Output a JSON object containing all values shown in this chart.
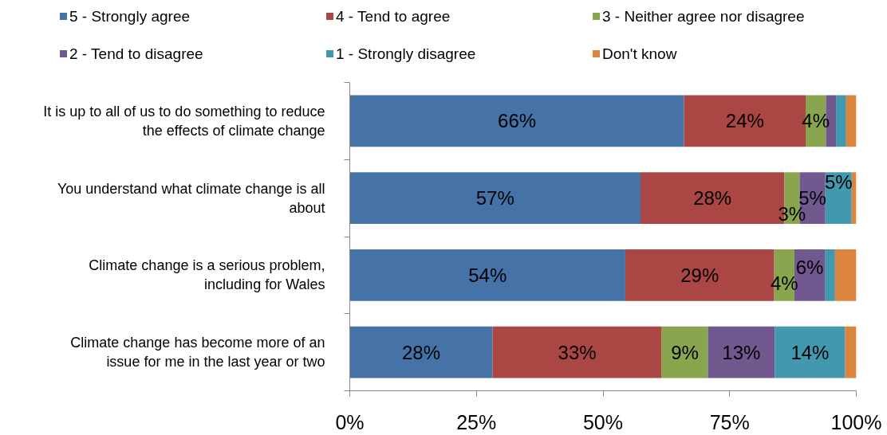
{
  "chart_data": {
    "type": "bar",
    "orientation": "horizontal",
    "stacked": true,
    "categories": [
      "It is up to all of us to do something to reduce the effects of climate change",
      "You understand what climate change is all about",
      "Climate change is a serious problem, including for Wales",
      "Climate change has become more of an issue for me in the last year or two"
    ],
    "series": [
      {
        "name": "5 - Strongly agree",
        "color": "#4572a7",
        "values": [
          66,
          57.4,
          54.4,
          28.2
        ],
        "value_labels": [
          "66%",
          "57%",
          "54%",
          "28%"
        ]
      },
      {
        "name": "4 - Tend to agree",
        "color": "#aa4643",
        "values": [
          24,
          28.4,
          29.4,
          33.4
        ],
        "value_labels": [
          "24%",
          "28%",
          "29%",
          "33%"
        ]
      },
      {
        "name": "3 - Neither agree nor disagree",
        "color": "#89a54e",
        "values": [
          4,
          3,
          4,
          9.1
        ],
        "value_labels": [
          "4%",
          "3%",
          "4%",
          "9%"
        ]
      },
      {
        "name": "2 - Tend to disagree",
        "color": "#71588f",
        "values": [
          2,
          5.1,
          6,
          13.2
        ],
        "value_labels": [
          null,
          "5%",
          "6%",
          "13%"
        ]
      },
      {
        "name": "1 - Strongly disagree",
        "color": "#4198af",
        "values": [
          2,
          5.2,
          2,
          13.9
        ],
        "value_labels": [
          null,
          "5%",
          null,
          "14%"
        ]
      },
      {
        "name": "Don't know",
        "color": "#db843d",
        "values": [
          2,
          0.9,
          4.2,
          2.2
        ]
      }
    ],
    "xlim": [
      0,
      100
    ],
    "xticks": [
      {
        "value": 0,
        "label": "0%"
      },
      {
        "value": 25,
        "label": "25%"
      },
      {
        "value": 50,
        "label": "50%"
      },
      {
        "value": 75,
        "label": "75%"
      },
      {
        "value": 100,
        "label": "100%"
      }
    ],
    "legend": "top",
    "grid": false
  }
}
